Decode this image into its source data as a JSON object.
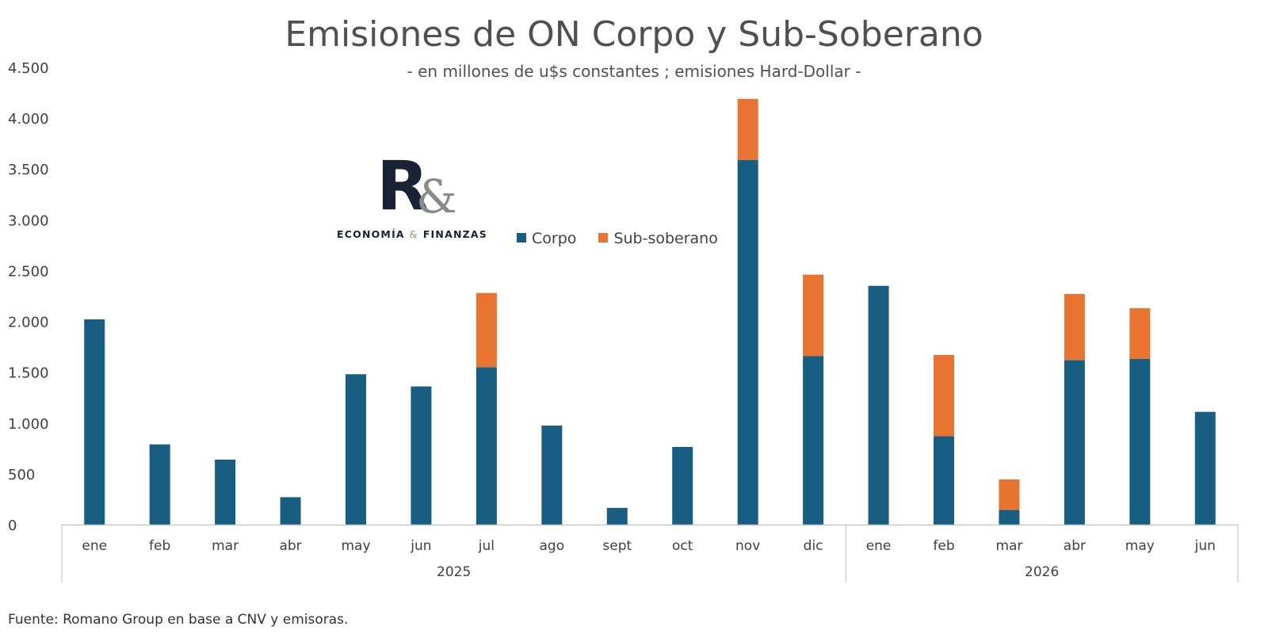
{
  "colors": {
    "corpo": "#175e82",
    "sub": "#e97432",
    "axis": "#c8c8c8"
  },
  "logo": {
    "mark_r": "R",
    "mark_amp": "&",
    "text_left": "ECONOMÍA",
    "text_amp": "&",
    "text_right": "FINANZAS"
  },
  "source": "Fuente: Romano Group en base a CNV y emisoras.",
  "chart_data": {
    "type": "bar",
    "stacked": true,
    "title": "Emisiones de ON Corpo y Sub-Soberano",
    "subtitle": "- en millones de u$s constantes ; emisiones Hard-Dollar -",
    "ylim": [
      0,
      4500
    ],
    "yticks": [
      0,
      500,
      1000,
      1500,
      2000,
      2500,
      3000,
      3500,
      4000,
      4500
    ],
    "ytick_labels": [
      "0",
      "500",
      "1.000",
      "1.500",
      "2.000",
      "2.500",
      "3.000",
      "3.500",
      "4.000",
      "4.500"
    ],
    "categories": [
      "ene",
      "feb",
      "mar",
      "abr",
      "may",
      "jun",
      "jul",
      "ago",
      "sept",
      "oct",
      "nov",
      "dic",
      "ene",
      "feb",
      "mar",
      "abr",
      "may",
      "jun"
    ],
    "groups": [
      {
        "label": "2025",
        "count": 12
      },
      {
        "label": "2026",
        "count": 6
      }
    ],
    "series": [
      {
        "name": "Corpo",
        "values": [
          2020,
          790,
          640,
          270,
          1480,
          1360,
          1550,
          975,
          165,
          765,
          3590,
          1660,
          2350,
          870,
          145,
          1620,
          1630,
          1110
        ]
      },
      {
        "name": "Sub-soberano",
        "values": [
          0,
          0,
          0,
          0,
          0,
          0,
          730,
          0,
          0,
          0,
          600,
          800,
          0,
          800,
          300,
          650,
          500,
          0
        ]
      }
    ],
    "legend": "center",
    "grid": false
  }
}
